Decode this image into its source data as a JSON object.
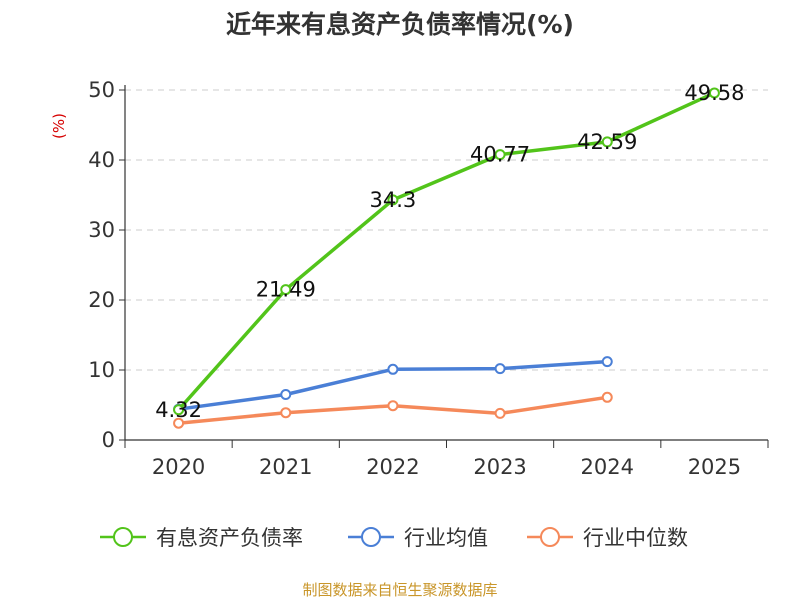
{
  "chart_data": {
    "type": "line",
    "title": "近年来有息资产负债率情况(%)",
    "unit_label": "(%)",
    "categories": [
      "2020",
      "2021",
      "2022",
      "2023",
      "2024",
      "2025"
    ],
    "ylim": [
      0,
      50
    ],
    "yticks": [
      "0",
      "10",
      "20",
      "30",
      "40",
      "50"
    ],
    "grid": true,
    "legend_position": "bottom",
    "series": [
      {
        "name": "有息资产负债率",
        "color": "#52c41a",
        "values": [
          4.32,
          21.49,
          34.3,
          40.77,
          42.59,
          49.58
        ],
        "labels": [
          "4.32",
          "21.49",
          "34.3",
          "40.77",
          "42.59",
          "49.58"
        ]
      },
      {
        "name": "行业均值",
        "color": "#4a7fd6",
        "values": [
          4.4,
          6.5,
          10.1,
          10.2,
          11.2,
          null
        ]
      },
      {
        "name": "行业中位数",
        "color": "#f5895a",
        "values": [
          2.4,
          3.9,
          4.9,
          3.8,
          6.1,
          null
        ]
      }
    ],
    "source": "制图数据来自恒生聚源数据库"
  }
}
